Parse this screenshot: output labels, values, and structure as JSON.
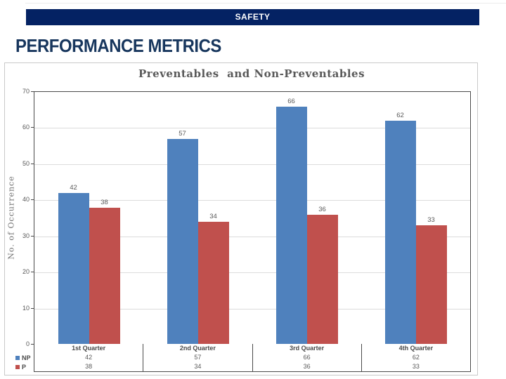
{
  "slide": {
    "header_bar_title": "SAFETY",
    "title": "PERFORMANCE METRICS"
  },
  "chart_data": {
    "type": "bar",
    "title": "Preventables  and Non-Preventables",
    "xlabel": "",
    "ylabel": "No. of Occurrence",
    "ylim": [
      0,
      70
    ],
    "ytick_step": 10,
    "yticks": [
      "0",
      "10",
      "20",
      "30",
      "40",
      "50",
      "60",
      "70"
    ],
    "grid": true,
    "data_table_shown": true,
    "legend_position": "left-of-data-table",
    "categories": [
      "1st Quarter",
      "2nd Quarter",
      "3rd Quarter",
      "4th Quarter"
    ],
    "series": [
      {
        "name": "NP",
        "color": "#4f81bd",
        "values": [
          42,
          57,
          66,
          62
        ]
      },
      {
        "name": "P",
        "color": "#c0504d",
        "values": [
          38,
          34,
          36,
          33
        ]
      }
    ]
  },
  "colors": {
    "header_bar_bg": "#042263",
    "page_title": "#17365d",
    "chart_text": "#595959",
    "plot_border": "#4a4a4a",
    "gridline": "#dcdcdc",
    "bar_blue": "#4f81bd",
    "bar_red": "#c0504d"
  }
}
